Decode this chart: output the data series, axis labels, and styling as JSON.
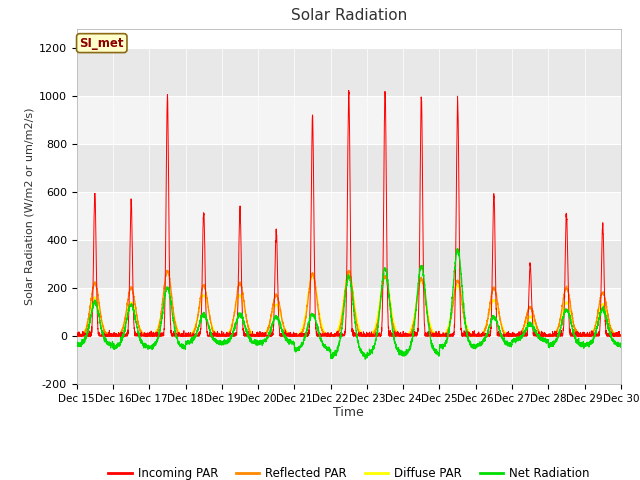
{
  "title": "Solar Radiation",
  "xlabel": "Time",
  "ylabel": "Solar Radiation (W/m2 or um/m2/s)",
  "ylim": [
    -200,
    1280
  ],
  "yticks": [
    -200,
    0,
    200,
    400,
    600,
    800,
    1000,
    1200
  ],
  "fig_bg_color": "#ffffff",
  "plot_bg_color": "#ffffff",
  "band_colors": [
    "#e8e8e8",
    "#f4f4f4"
  ],
  "label_box_text": "SI_met",
  "series_colors": {
    "incoming": "#ff0000",
    "reflected": "#ff8800",
    "diffuse": "#ffff00",
    "net": "#00dd00"
  },
  "legend_labels": [
    "Incoming PAR",
    "Reflected PAR",
    "Diffuse PAR",
    "Net Radiation"
  ],
  "xtick_labels": [
    "Dec 15",
    "Dec 16",
    "Dec 17",
    "Dec 18",
    "Dec 19",
    "Dec 20",
    "Dec 21",
    "Dec 22",
    "Dec 23",
    "Dec 24",
    "Dec 25",
    "Dec 26",
    "Dec 27",
    "Dec 28",
    "Dec 29",
    "Dec 30"
  ],
  "incoming_peaks": [
    590,
    560,
    1000,
    520,
    530,
    440,
    920,
    1020,
    1020,
    1000,
    990,
    590,
    300,
    510,
    470
  ],
  "reflected_peaks": [
    220,
    200,
    270,
    210,
    220,
    170,
    260,
    270,
    250,
    240,
    230,
    200,
    120,
    200,
    180
  ],
  "diffuse_peaks": [
    160,
    140,
    200,
    170,
    170,
    130,
    250,
    260,
    250,
    230,
    210,
    150,
    80,
    140,
    130
  ],
  "net_peaks": [
    140,
    130,
    200,
    90,
    90,
    80,
    90,
    250,
    280,
    290,
    360,
    80,
    50,
    110,
    110
  ],
  "net_night": [
    -40,
    -50,
    -50,
    -30,
    -30,
    -30,
    -60,
    -90,
    -80,
    -80,
    -50,
    -40,
    -20,
    -40,
    -40
  ]
}
